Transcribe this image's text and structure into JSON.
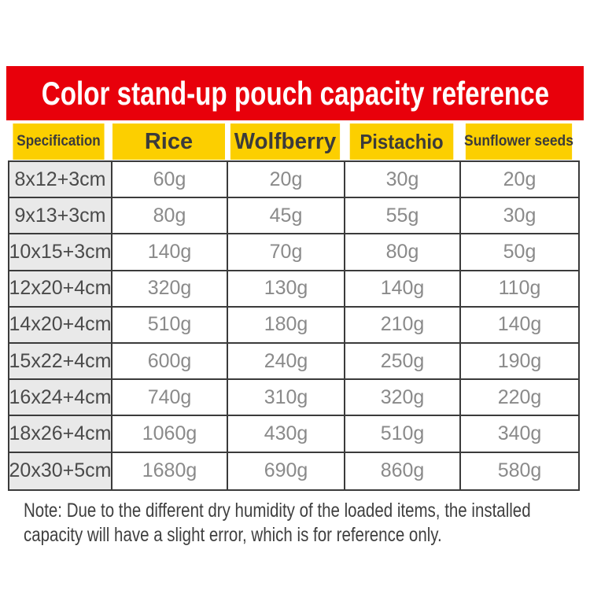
{
  "banner": {
    "title": "Color stand-up pouch capacity reference"
  },
  "table": {
    "headers": [
      "Specification",
      "Rice",
      "Wolfberry",
      "Pistachio",
      "Sunflower seeds"
    ],
    "rows": [
      {
        "cells": [
          "8x12+3cm",
          "60g",
          "20g",
          "30g",
          "20g"
        ]
      },
      {
        "cells": [
          "9x13+3cm",
          "80g",
          "45g",
          "55g",
          "30g"
        ]
      },
      {
        "cells": [
          "10x15+3cm",
          "140g",
          "70g",
          "80g",
          "50g"
        ]
      },
      {
        "cells": [
          "12x20+4cm",
          "320g",
          "130g",
          "140g",
          "110g"
        ]
      },
      {
        "cells": [
          "14x20+4cm",
          "510g",
          "180g",
          "210g",
          "140g"
        ]
      },
      {
        "cells": [
          "15x22+4cm",
          "600g",
          "240g",
          "250g",
          "190g"
        ]
      },
      {
        "cells": [
          "16x24+4cm",
          "740g",
          "310g",
          "320g",
          "220g"
        ]
      },
      {
        "cells": [
          "18x26+4cm",
          "1060g",
          "430g",
          "510g",
          "340g"
        ]
      },
      {
        "cells": [
          "20x30+5cm",
          "1680g",
          "690g",
          "860g",
          "580g"
        ]
      }
    ]
  },
  "note": {
    "line1": "Note: Due to the different dry humidity of the loaded items, the installed",
    "line2": "capacity will have a slight error, which is for reference only."
  },
  "colors": {
    "banner_red": "#e8000b",
    "header_yellow": "#fccf00",
    "spec_cell_gray": "#e9e9e9",
    "border_dark": "#3b3b3b",
    "header_text": "#3b3b3b",
    "spec_text": "#4a4a4a",
    "value_text": "#8a8a8a",
    "title_text": "#ffffff",
    "note_text": "#3f3f3f"
  },
  "chart_data": {
    "type": "table",
    "title": "Color stand-up pouch capacity reference",
    "categories": [
      "8x12+3cm",
      "9x13+3cm",
      "10x15+3cm",
      "12x20+4cm",
      "14x20+4cm",
      "15x22+4cm",
      "16x24+4cm",
      "18x26+4cm",
      "20x30+5cm"
    ],
    "unit": "g",
    "series": [
      {
        "name": "Rice",
        "values": [
          60,
          80,
          140,
          320,
          510,
          600,
          740,
          1060,
          1680
        ]
      },
      {
        "name": "Wolfberry",
        "values": [
          20,
          45,
          70,
          130,
          180,
          240,
          310,
          430,
          690
        ]
      },
      {
        "name": "Pistachio",
        "values": [
          30,
          55,
          80,
          140,
          210,
          250,
          320,
          510,
          860
        ]
      },
      {
        "name": "Sunflower seeds",
        "values": [
          20,
          30,
          50,
          110,
          140,
          190,
          220,
          340,
          580
        ]
      }
    ],
    "note": "Note: Due to the different dry humidity of the loaded items, the installed capacity will have a slight error, which is for reference only."
  }
}
